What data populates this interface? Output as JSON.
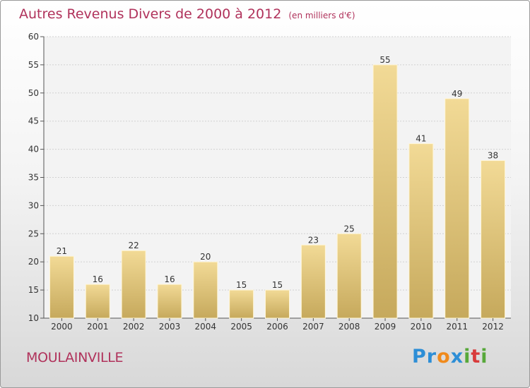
{
  "header": {
    "title": "Autres Revenus Divers de 2000 à 2012",
    "subtitle": "(en milliers d'€)"
  },
  "footer": {
    "town": "MOULAINVILLE",
    "brand": [
      "P",
      "r",
      "o",
      "x",
      "i",
      "t",
      "i"
    ],
    "brand_colors": [
      "#2d8ed6",
      "#2d8ed6",
      "#f08a1c",
      "#2d8ed6",
      "#57a83a",
      "#d83b3b",
      "#57a83a"
    ]
  },
  "colors": {
    "title": "#b0325b",
    "bar_top": "#f2da96",
    "bar_bottom": "#c6a95c",
    "bar_edge": "#fff6d8"
  },
  "chart_data": {
    "type": "bar",
    "categories": [
      "2000",
      "2001",
      "2002",
      "2003",
      "2004",
      "2005",
      "2006",
      "2007",
      "2008",
      "2009",
      "2010",
      "2011",
      "2012"
    ],
    "values": [
      21,
      16,
      22,
      16,
      20,
      15,
      15,
      23,
      25,
      55,
      41,
      49,
      38
    ],
    "ylim": [
      10,
      60
    ],
    "yticks": [
      10,
      15,
      20,
      25,
      30,
      35,
      40,
      45,
      50,
      55,
      60
    ],
    "grid": true,
    "data_labels": true
  }
}
